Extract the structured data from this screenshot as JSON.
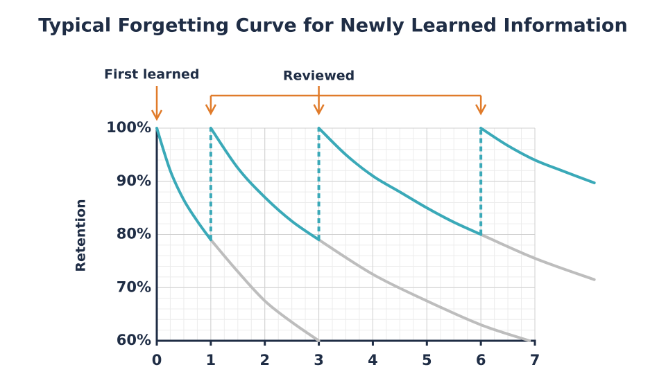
{
  "chart_data": {
    "type": "line",
    "title": "Typical Forgetting Curve for Newly Learned Information",
    "y_label": "Retention",
    "xlim": [
      0,
      7
    ],
    "ylim": [
      60,
      100
    ],
    "xticks": [
      0,
      1,
      2,
      3,
      4,
      5,
      6,
      7
    ],
    "yticks": [
      {
        "value": 60,
        "label": "60%"
      },
      {
        "value": 70,
        "label": "70%"
      },
      {
        "value": 80,
        "label": "80%"
      },
      {
        "value": 90,
        "label": "90%"
      },
      {
        "value": 100,
        "label": "100%"
      }
    ],
    "grid": true,
    "minor_grid": {
      "x": 0.25,
      "y": 2
    },
    "series": [
      {
        "color": "#3aa9b8",
        "x": [
          0,
          0.25,
          0.5,
          0.75,
          1,
          null,
          1,
          1.5,
          2,
          2.5,
          3,
          null,
          3,
          3.5,
          4,
          4.5,
          5,
          5.5,
          6,
          null,
          6,
          6.5,
          7,
          7.5,
          8.1
        ],
        "values": [
          100,
          92,
          86.5,
          82.5,
          79,
          null,
          100,
          92.5,
          87,
          82.5,
          79,
          null,
          100,
          95,
          91,
          88,
          85,
          82.3,
          80,
          null,
          100,
          96.7,
          94,
          92,
          89.7
        ]
      },
      {
        "color": "#bdbdbd",
        "x": [
          1,
          1.5,
          2,
          2.5,
          3,
          null,
          3,
          4,
          5,
          6,
          6.9,
          null,
          6,
          7,
          8.1
        ],
        "values": [
          79,
          73,
          67.5,
          63.5,
          60,
          null,
          79,
          72.5,
          67.5,
          63,
          60,
          null,
          80,
          75.5,
          71.5
        ]
      }
    ],
    "annotations": {
      "first_learned": {
        "text": "First learned",
        "x": 0,
        "color": "#e07b2a"
      },
      "reviewed": {
        "text": "Reviewed",
        "x": [
          1,
          3,
          6
        ],
        "color": "#e07b2a"
      }
    }
  }
}
